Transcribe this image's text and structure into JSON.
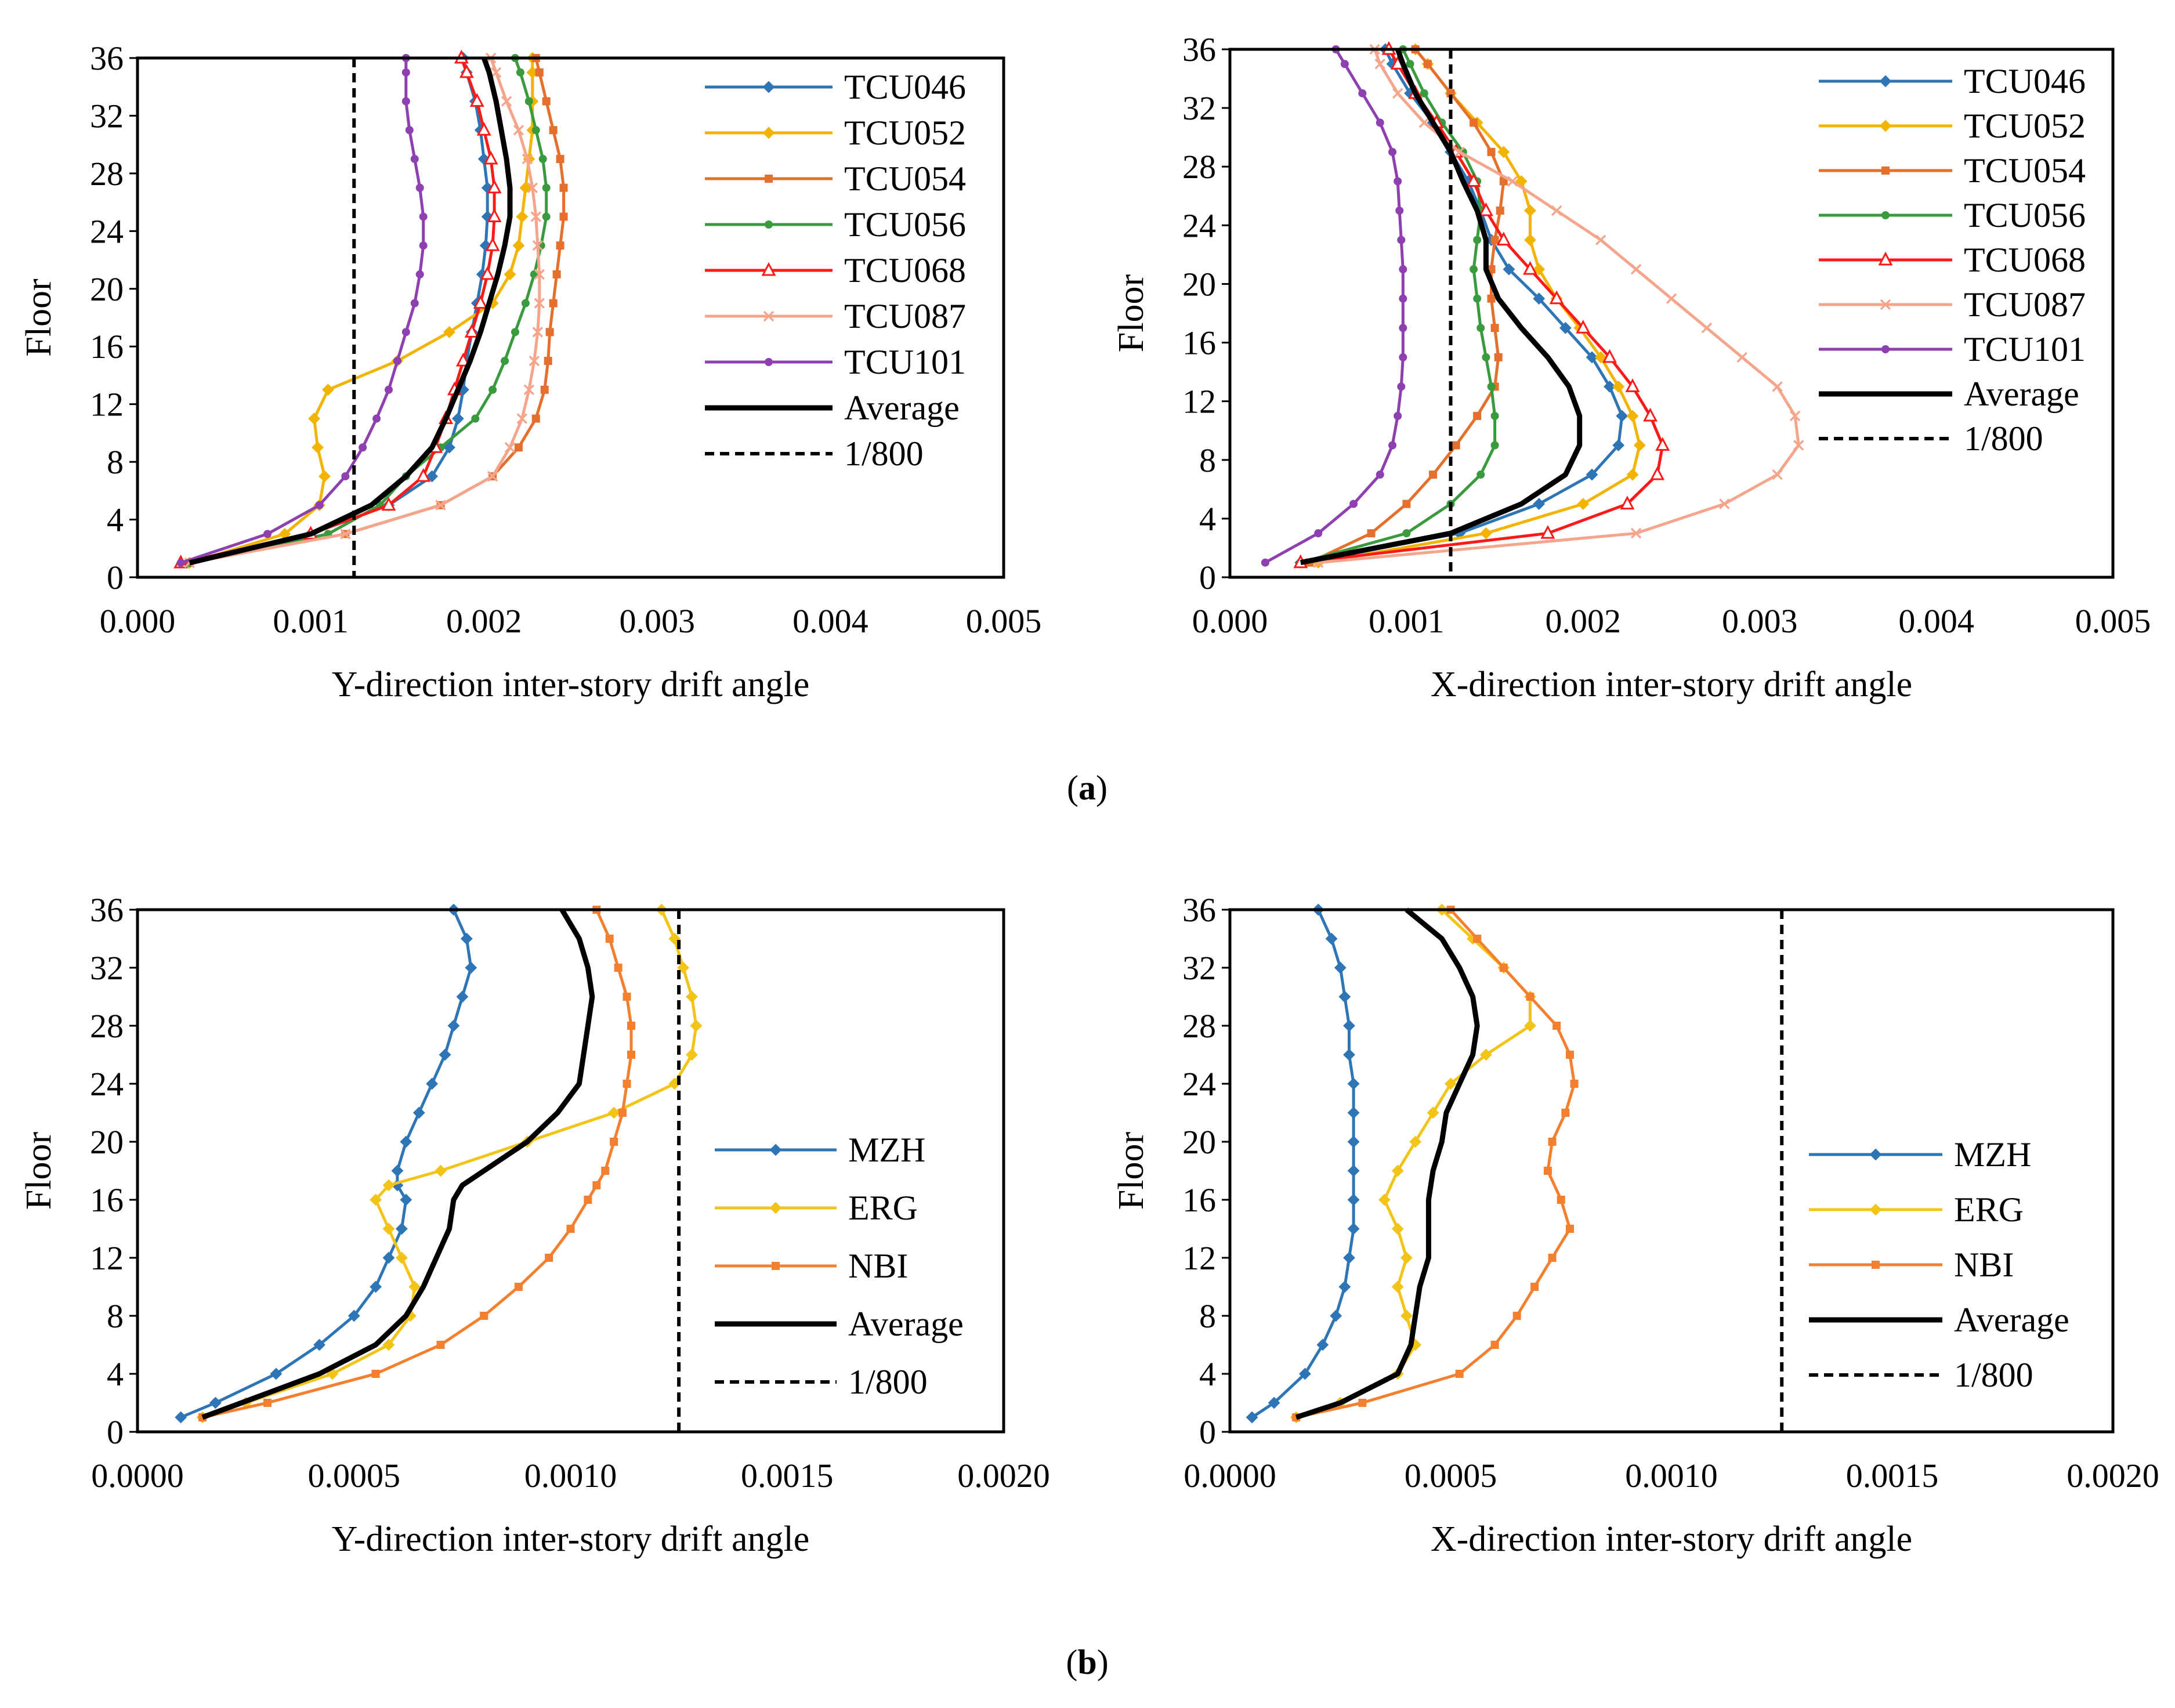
{
  "figure": {
    "caption_a": "(a)",
    "caption_b": "(b)",
    "caption_a_letter": "a",
    "caption_b_letter": "b"
  },
  "colors": {
    "TCU046": "#2E75B6",
    "TCU052": "#F2B400",
    "TCU054": "#E5702D",
    "TCU056": "#3A9A3E",
    "TCU068": "#FF1A1A",
    "TCU087": "#F4A58C",
    "TCU101": "#8E3FB0",
    "MZH": "#2E75B6",
    "ERG": "#F2C418",
    "NBI": "#F47F2E",
    "Average": "#000000",
    "limit": "#000000"
  },
  "chart_data": [
    {
      "id": "a-left",
      "type": "line",
      "orientation": "profile",
      "xlabel": "Y-direction inter-story drift angle",
      "ylabel": "Floor",
      "xlim": [
        0,
        0.005
      ],
      "ylim": [
        0,
        36
      ],
      "xticks": [
        "0.000",
        "0.001",
        "0.002",
        "0.003",
        "0.004",
        "0.005"
      ],
      "yticks": [
        "0",
        "4",
        "8",
        "12",
        "16",
        "20",
        "24",
        "28",
        "32",
        "36"
      ],
      "legend_position": "top-right",
      "floors": [
        1,
        3,
        5,
        7,
        9,
        11,
        13,
        15,
        17,
        19,
        21,
        23,
        25,
        27,
        29,
        31,
        33,
        35,
        36
      ],
      "series": [
        {
          "name": "TCU046",
          "marker": "diamond",
          "values": [
            0.0003,
            0.001,
            0.00145,
            0.0017,
            0.0018,
            0.00185,
            0.00188,
            0.0019,
            0.00193,
            0.00196,
            0.00199,
            0.00201,
            0.00202,
            0.00202,
            0.002,
            0.00198,
            0.00195,
            0.0019,
            0.00188
          ]
        },
        {
          "name": "TCU052",
          "marker": "diamond",
          "values": [
            0.0003,
            0.00085,
            0.00105,
            0.00108,
            0.00104,
            0.00102,
            0.0011,
            0.0015,
            0.0018,
            0.00205,
            0.00215,
            0.0022,
            0.00222,
            0.00224,
            0.00226,
            0.00228,
            0.00228,
            0.00228,
            0.00228
          ]
        },
        {
          "name": "TCU054",
          "marker": "square",
          "values": [
            0.0003,
            0.0012,
            0.00175,
            0.00205,
            0.0022,
            0.0023,
            0.00235,
            0.00237,
            0.00238,
            0.0024,
            0.00242,
            0.00244,
            0.00246,
            0.00246,
            0.00244,
            0.0024,
            0.00236,
            0.00232,
            0.0023
          ]
        },
        {
          "name": "TCU056",
          "marker": "circle",
          "values": [
            0.0003,
            0.0011,
            0.0014,
            0.00155,
            0.00175,
            0.00195,
            0.00205,
            0.00212,
            0.00218,
            0.00224,
            0.00229,
            0.00233,
            0.00236,
            0.00236,
            0.00234,
            0.0023,
            0.00226,
            0.00221,
            0.00218
          ]
        },
        {
          "name": "TCU068",
          "marker": "triangle",
          "values": [
            0.00025,
            0.001,
            0.00145,
            0.00165,
            0.00172,
            0.00178,
            0.00183,
            0.00188,
            0.00193,
            0.00198,
            0.00202,
            0.00205,
            0.00206,
            0.00206,
            0.00204,
            0.002,
            0.00196,
            0.0019,
            0.00187
          ]
        },
        {
          "name": "TCU087",
          "marker": "cross",
          "values": [
            0.0003,
            0.0012,
            0.00175,
            0.00205,
            0.00215,
            0.00222,
            0.00226,
            0.00229,
            0.00231,
            0.00232,
            0.00232,
            0.00231,
            0.0023,
            0.00228,
            0.00225,
            0.0022,
            0.00213,
            0.00207,
            0.00204
          ]
        },
        {
          "name": "TCU101",
          "marker": "circle",
          "values": [
            0.00025,
            0.00075,
            0.00105,
            0.0012,
            0.0013,
            0.00138,
            0.00145,
            0.0015,
            0.00155,
            0.0016,
            0.00163,
            0.00165,
            0.00165,
            0.00163,
            0.0016,
            0.00157,
            0.00155,
            0.00155,
            0.00155
          ]
        },
        {
          "name": "Average",
          "marker": "none",
          "values": [
            0.0003,
            0.001,
            0.00135,
            0.00155,
            0.0017,
            0.00178,
            0.00185,
            0.00192,
            0.00198,
            0.00203,
            0.00208,
            0.00212,
            0.00215,
            0.00215,
            0.00213,
            0.0021,
            0.00207,
            0.00203,
            0.002
          ]
        }
      ],
      "reference_lines": [
        {
          "name": "1/800",
          "x": 0.00125,
          "style": "dashed"
        }
      ]
    },
    {
      "id": "a-right",
      "type": "line",
      "orientation": "profile",
      "xlabel": "X-direction inter-story drift angle",
      "ylabel": "Floor",
      "xlim": [
        0,
        0.005
      ],
      "ylim": [
        0,
        36
      ],
      "xticks": [
        "0.000",
        "0.001",
        "0.002",
        "0.003",
        "0.004",
        "0.005"
      ],
      "yticks": [
        "0",
        "4",
        "8",
        "12",
        "16",
        "20",
        "24",
        "28",
        "32",
        "36"
      ],
      "legend_position": "top-right",
      "floors": [
        1,
        3,
        5,
        7,
        9,
        11,
        13,
        15,
        17,
        19,
        21,
        23,
        25,
        27,
        29,
        31,
        33,
        35,
        36
      ],
      "series": [
        {
          "name": "TCU046",
          "marker": "diamond",
          "values": [
            0.0004,
            0.0013,
            0.00175,
            0.00205,
            0.0022,
            0.00222,
            0.00215,
            0.00205,
            0.0019,
            0.00175,
            0.00158,
            0.00148,
            0.00142,
            0.00135,
            0.00125,
            0.00115,
            0.00102,
            0.00092,
            0.00088
          ]
        },
        {
          "name": "TCU052",
          "marker": "diamond",
          "values": [
            0.0005,
            0.00145,
            0.002,
            0.00228,
            0.00232,
            0.00228,
            0.0022,
            0.0021,
            0.00198,
            0.00185,
            0.00175,
            0.0017,
            0.0017,
            0.00165,
            0.00155,
            0.0014,
            0.00125,
            0.00112,
            0.00105
          ]
        },
        {
          "name": "TCU054",
          "marker": "square",
          "values": [
            0.00045,
            0.0008,
            0.001,
            0.00115,
            0.00128,
            0.0014,
            0.0015,
            0.00152,
            0.0015,
            0.00148,
            0.00148,
            0.0015,
            0.00153,
            0.00155,
            0.00148,
            0.00138,
            0.00125,
            0.00112,
            0.00105
          ]
        },
        {
          "name": "TCU056",
          "marker": "circle",
          "values": [
            0.0004,
            0.001,
            0.00125,
            0.00142,
            0.0015,
            0.0015,
            0.00148,
            0.00145,
            0.00142,
            0.0014,
            0.00138,
            0.0014,
            0.00142,
            0.0014,
            0.00132,
            0.0012,
            0.0011,
            0.00102,
            0.00098
          ]
        },
        {
          "name": "TCU068",
          "marker": "triangle",
          "values": [
            0.0004,
            0.0018,
            0.00225,
            0.00242,
            0.00245,
            0.00238,
            0.00228,
            0.00215,
            0.002,
            0.00185,
            0.0017,
            0.00155,
            0.00145,
            0.00138,
            0.00128,
            0.00117,
            0.00105,
            0.00095,
            0.0009
          ]
        },
        {
          "name": "TCU087",
          "marker": "cross",
          "values": [
            0.0005,
            0.0023,
            0.0028,
            0.0031,
            0.00322,
            0.0032,
            0.0031,
            0.0029,
            0.0027,
            0.0025,
            0.0023,
            0.0021,
            0.00185,
            0.0016,
            0.0013,
            0.0011,
            0.00095,
            0.00085,
            0.00082
          ]
        },
        {
          "name": "TCU101",
          "marker": "circle",
          "values": [
            0.0002,
            0.0005,
            0.0007,
            0.00085,
            0.00092,
            0.00095,
            0.00097,
            0.00098,
            0.00098,
            0.00098,
            0.00098,
            0.00097,
            0.00096,
            0.00095,
            0.00092,
            0.00085,
            0.00075,
            0.00065,
            0.0006
          ]
        },
        {
          "name": "Average",
          "marker": "none",
          "values": [
            0.0004,
            0.00125,
            0.00165,
            0.0019,
            0.00198,
            0.00198,
            0.00192,
            0.0018,
            0.00165,
            0.00152,
            0.00145,
            0.00145,
            0.0014,
            0.00132,
            0.00125,
            0.00115,
            0.00105,
            0.00098,
            0.00095
          ]
        }
      ],
      "reference_lines": [
        {
          "name": "1/800",
          "x": 0.00125,
          "style": "dashed"
        }
      ]
    },
    {
      "id": "b-left",
      "type": "line",
      "orientation": "profile",
      "xlabel": "Y-direction inter-story drift angle",
      "ylabel": "Floor",
      "xlim": [
        0,
        0.002
      ],
      "ylim": [
        0,
        36
      ],
      "xticks": [
        "0.0000",
        "0.0005",
        "0.0010",
        "0.0015",
        "0.0020"
      ],
      "yticks": [
        "0",
        "4",
        "8",
        "12",
        "16",
        "20",
        "24",
        "28",
        "32",
        "36"
      ],
      "legend_position": "right",
      "floors": [
        1,
        2,
        4,
        6,
        8,
        10,
        12,
        14,
        16,
        17,
        18,
        20,
        22,
        24,
        26,
        28,
        30,
        32,
        34,
        36
      ],
      "series": [
        {
          "name": "MZH",
          "marker": "diamond",
          "values": [
            0.0001,
            0.00018,
            0.00032,
            0.00042,
            0.0005,
            0.00055,
            0.00058,
            0.00061,
            0.00062,
            0.0006,
            0.0006,
            0.00062,
            0.00065,
            0.00068,
            0.00071,
            0.00073,
            0.00075,
            0.00077,
            0.00076,
            0.00073
          ]
        },
        {
          "name": "ERG",
          "marker": "diamond",
          "values": [
            0.00015,
            0.00025,
            0.00045,
            0.00058,
            0.00063,
            0.00064,
            0.00061,
            0.00058,
            0.00055,
            0.00058,
            0.0007,
            0.0009,
            0.0011,
            0.00124,
            0.00128,
            0.00129,
            0.00128,
            0.00126,
            0.00124,
            0.00121
          ]
        },
        {
          "name": "NBI",
          "marker": "square",
          "values": [
            0.00015,
            0.0003,
            0.00055,
            0.0007,
            0.0008,
            0.00088,
            0.00095,
            0.001,
            0.00104,
            0.00106,
            0.00108,
            0.0011,
            0.00112,
            0.00113,
            0.00114,
            0.00114,
            0.00113,
            0.00111,
            0.00109,
            0.00106
          ]
        },
        {
          "name": "Average",
          "marker": "none",
          "values": [
            0.00015,
            0.00024,
            0.00042,
            0.00055,
            0.00062,
            0.00066,
            0.00069,
            0.00072,
            0.00073,
            0.00075,
            0.0008,
            0.0009,
            0.00097,
            0.00102,
            0.00103,
            0.00104,
            0.00105,
            0.00104,
            0.00102,
            0.00098
          ]
        }
      ],
      "reference_lines": [
        {
          "name": "1/800",
          "x": 0.00125,
          "style": "dashed"
        }
      ]
    },
    {
      "id": "b-right",
      "type": "line",
      "orientation": "profile",
      "xlabel": "X-direction inter-story drift angle",
      "ylabel": "Floor",
      "xlim": [
        0,
        0.002
      ],
      "ylim": [
        0,
        36
      ],
      "xticks": [
        "0.0000",
        "0.0005",
        "0.0010",
        "0.0015",
        "0.0020"
      ],
      "yticks": [
        "0",
        "4",
        "8",
        "12",
        "16",
        "20",
        "24",
        "28",
        "32",
        "36"
      ],
      "legend_position": "right",
      "floors": [
        1,
        2,
        4,
        6,
        8,
        10,
        12,
        14,
        16,
        18,
        20,
        22,
        24,
        26,
        28,
        30,
        32,
        34,
        36
      ],
      "series": [
        {
          "name": "MZH",
          "marker": "diamond",
          "values": [
            5e-05,
            0.0001,
            0.00017,
            0.00021,
            0.00024,
            0.00026,
            0.00027,
            0.00028,
            0.00028,
            0.00028,
            0.00028,
            0.00028,
            0.00028,
            0.00027,
            0.00027,
            0.00026,
            0.00025,
            0.00023,
            0.0002
          ]
        },
        {
          "name": "ERG",
          "marker": "diamond",
          "values": [
            0.00015,
            0.00025,
            0.00038,
            0.00042,
            0.0004,
            0.00038,
            0.0004,
            0.00038,
            0.00035,
            0.00038,
            0.00042,
            0.00046,
            0.0005,
            0.00058,
            0.00068,
            0.00068,
            0.00062,
            0.00055,
            0.00048
          ]
        },
        {
          "name": "NBI",
          "marker": "square",
          "values": [
            0.00015,
            0.0003,
            0.00052,
            0.0006,
            0.00065,
            0.00069,
            0.00073,
            0.00077,
            0.00075,
            0.00072,
            0.00073,
            0.00076,
            0.00078,
            0.00077,
            0.00074,
            0.00068,
            0.00062,
            0.00056,
            0.0005
          ]
        },
        {
          "name": "Average",
          "marker": "none",
          "values": [
            0.00015,
            0.00025,
            0.00038,
            0.00041,
            0.00042,
            0.00043,
            0.00045,
            0.00045,
            0.00045,
            0.00046,
            0.00048,
            0.00049,
            0.00052,
            0.00055,
            0.00056,
            0.00055,
            0.00052,
            0.00048,
            0.0004
          ]
        }
      ],
      "reference_lines": [
        {
          "name": "1/800",
          "x": 0.00125,
          "style": "dashed"
        }
      ]
    }
  ]
}
